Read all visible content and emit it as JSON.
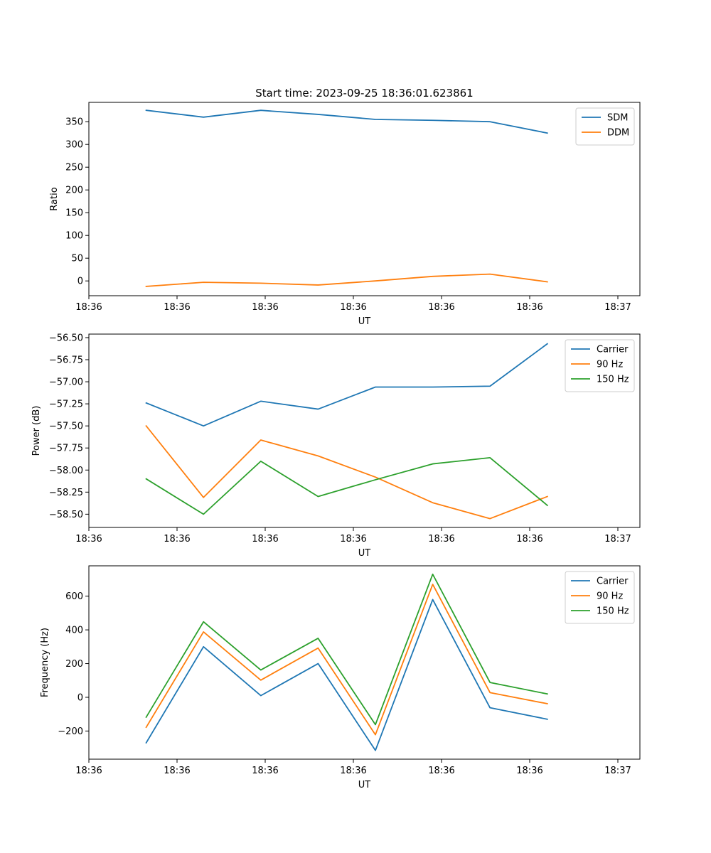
{
  "figure": {
    "title": "Start time: 2023-09-25 18:36:01.623861"
  },
  "chart_data": [
    {
      "type": "line",
      "title": "Start time: 2023-09-25 18:36:01.623861",
      "xlabel": "UT",
      "ylabel": "Ratio",
      "x_seconds": [
        2.6,
        5.2,
        7.8,
        10.4,
        13.0,
        15.6,
        18.2,
        20.8
      ],
      "xlim": [
        0,
        25
      ],
      "xticks_seconds": [
        0,
        4,
        8,
        12,
        16,
        20,
        24
      ],
      "xtick_labels": [
        "18:36",
        "18:36",
        "18:36",
        "18:36",
        "18:36",
        "18:36",
        "18:37"
      ],
      "ylim": [
        -32.5,
        392.5
      ],
      "yticks": [
        0,
        50,
        100,
        150,
        200,
        250,
        300,
        350
      ],
      "ytick_labels": [
        "0",
        "50",
        "100",
        "150",
        "200",
        "250",
        "300",
        "350"
      ],
      "legend_position": "upper right",
      "series": [
        {
          "name": "SDM",
          "color": "#1f77b4",
          "values": [
            375,
            360,
            375,
            366,
            355,
            353,
            350,
            325
          ]
        },
        {
          "name": "DDM",
          "color": "#ff7f0e",
          "values": [
            -12,
            -3,
            -5,
            -9,
            0,
            10,
            15,
            -2
          ]
        }
      ]
    },
    {
      "type": "line",
      "title": "",
      "xlabel": "UT",
      "ylabel": "Power (dB)",
      "x_seconds": [
        2.6,
        5.2,
        7.8,
        10.4,
        13.0,
        15.6,
        18.2,
        20.8
      ],
      "xlim": [
        0,
        25
      ],
      "xticks_seconds": [
        0,
        4,
        8,
        12,
        16,
        20,
        24
      ],
      "xtick_labels": [
        "18:36",
        "18:36",
        "18:36",
        "18:36",
        "18:36",
        "18:36",
        "18:37"
      ],
      "ylim": [
        -58.65,
        -56.46
      ],
      "yticks": [
        -58.5,
        -58.25,
        -58.0,
        -57.75,
        -57.5,
        -57.25,
        -57.0,
        -56.75,
        -56.5
      ],
      "ytick_labels": [
        "−58.50",
        "−58.25",
        "−58.00",
        "−57.75",
        "−57.50",
        "−57.25",
        "−57.00",
        "−56.75",
        "−56.50"
      ],
      "legend_position": "upper right",
      "series": [
        {
          "name": "Carrier",
          "color": "#1f77b4",
          "values": [
            -57.24,
            -57.5,
            -57.22,
            -57.31,
            -57.06,
            -57.06,
            -57.05,
            -56.57
          ]
        },
        {
          "name": "90 Hz",
          "color": "#ff7f0e",
          "values": [
            -57.5,
            -58.31,
            -57.66,
            -57.84,
            -58.08,
            -58.37,
            -58.55,
            -58.3
          ]
        },
        {
          "name": "150 Hz",
          "color": "#2ca02c",
          "values": [
            -58.1,
            -58.5,
            -57.9,
            -58.3,
            -58.11,
            -57.93,
            -57.86,
            -58.4
          ]
        }
      ]
    },
    {
      "type": "line",
      "title": "",
      "xlabel": "UT",
      "ylabel": "Frequency (Hz)",
      "x_seconds": [
        2.6,
        5.2,
        7.8,
        10.4,
        13.0,
        15.6,
        18.2,
        20.8
      ],
      "xlim": [
        0,
        25
      ],
      "xticks_seconds": [
        0,
        4,
        8,
        12,
        16,
        20,
        24
      ],
      "xtick_labels": [
        "18:36",
        "18:36",
        "18:36",
        "18:36",
        "18:36",
        "18:36",
        "18:37"
      ],
      "ylim": [
        -367,
        780
      ],
      "yticks": [
        -200,
        0,
        200,
        400,
        600
      ],
      "ytick_labels": [
        "−200",
        "0",
        "200",
        "400",
        "600"
      ],
      "legend_position": "upper right",
      "series": [
        {
          "name": "Carrier",
          "color": "#1f77b4",
          "values": [
            -270,
            300,
            10,
            200,
            -315,
            580,
            -62,
            -130
          ]
        },
        {
          "name": "90 Hz",
          "color": "#ff7f0e",
          "values": [
            -178,
            388,
            102,
            292,
            -222,
            670,
            28,
            -38
          ]
        },
        {
          "name": "150 Hz",
          "color": "#2ca02c",
          "values": [
            -118,
            448,
            162,
            350,
            -162,
            730,
            88,
            20
          ]
        }
      ]
    }
  ]
}
